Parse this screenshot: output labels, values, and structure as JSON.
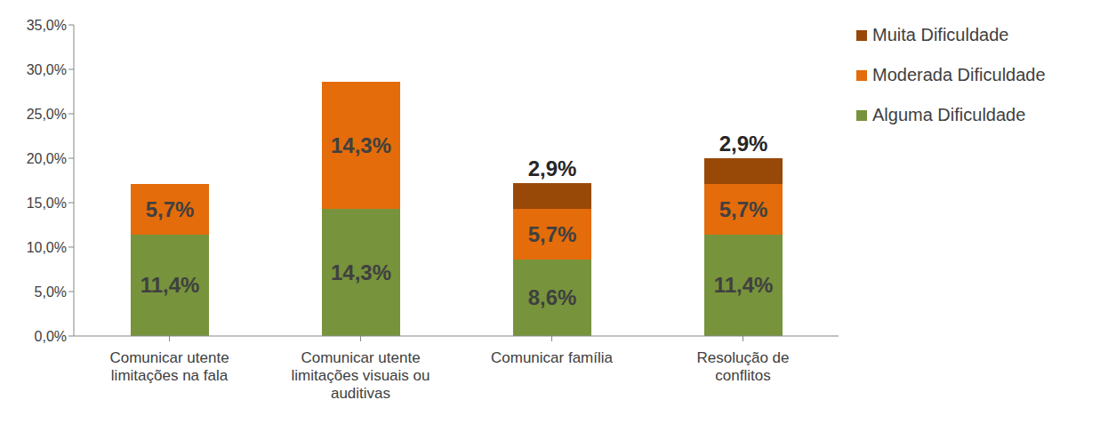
{
  "chart_data": {
    "type": "bar",
    "stacked": true,
    "data_labels": true,
    "grid": false,
    "legend": "right",
    "categories": [
      "Comunicar utente limitações na fala",
      "Comunicar utente limitações visuais ou auditivas",
      "Comunicar família",
      "Resolução de conflitos"
    ],
    "series": [
      {
        "name": "Alguma Dificuldade",
        "color": "#77933c",
        "values": [
          11.4,
          14.3,
          8.6,
          11.4
        ],
        "value_labels": [
          "11,4%",
          "14,3%",
          "8,6%",
          "11,4%"
        ]
      },
      {
        "name": "Moderada Dificuldade",
        "color": "#e46c0a",
        "values": [
          5.7,
          14.3,
          5.7,
          5.7
        ],
        "value_labels": [
          "5,7%",
          "14,3%",
          "5,7%",
          "5,7%"
        ]
      },
      {
        "name": "Muita Dificuldade",
        "color": "#984807",
        "values": [
          null,
          null,
          2.9,
          2.9
        ],
        "value_labels": [
          null,
          null,
          "2,9%",
          "2,9%"
        ]
      }
    ],
    "ylim": [
      0,
      35
    ],
    "yticks": [
      {
        "value": 0,
        "label": "0,0%"
      },
      {
        "value": 5,
        "label": "5,0%"
      },
      {
        "value": 10,
        "label": "10,0%"
      },
      {
        "value": 15,
        "label": "15,0%"
      },
      {
        "value": 20,
        "label": "20,0%"
      },
      {
        "value": 25,
        "label": "25,0%"
      },
      {
        "value": 30,
        "label": "30,0%"
      },
      {
        "value": 35,
        "label": "35,0%"
      }
    ]
  }
}
